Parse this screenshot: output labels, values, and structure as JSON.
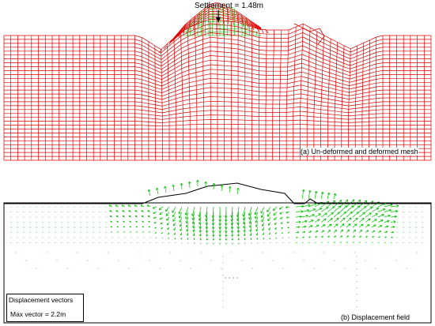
{
  "top_panel": {
    "annotation": "Settlement = 1.48m",
    "caption": "(a) Un-deformed and deformed mesh"
  },
  "bottom_panel": {
    "caption": "(b) Displacement field",
    "legend_title": "Displacement vectors",
    "legend_value": "Max vector = 2.2m"
  },
  "colors": {
    "undeformed_mesh": "#00c000",
    "deformed_mesh": "#e00000",
    "vectors": "#00c000",
    "ground_line": "#000000"
  }
}
